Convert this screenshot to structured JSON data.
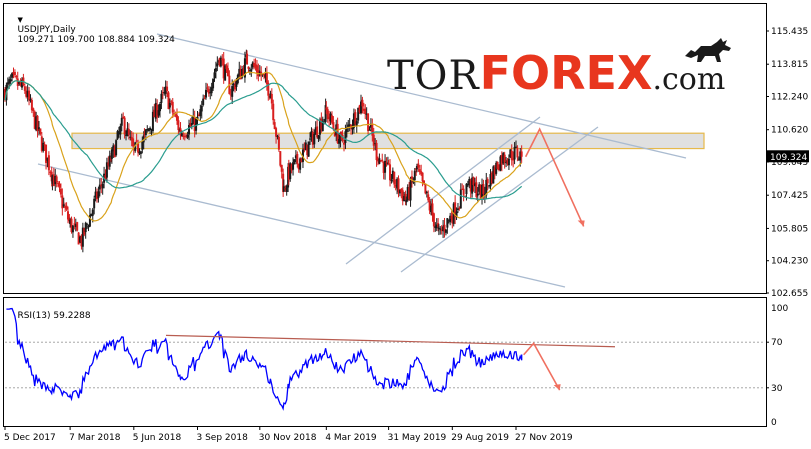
{
  "header": {
    "symbol": "USDJPY,Daily",
    "ohlc": "109.271 109.700 108.884 109.324"
  },
  "logo": {
    "part1": "TOR",
    "part2": "FOREX",
    "part3": ".com",
    "colors": {
      "part1": "#1a1a1a",
      "part2": "#e8361e",
      "part3": "#1a1a1a"
    }
  },
  "price_axis": {
    "labels": [
      "115.435",
      "113.815",
      "112.240",
      "110.620",
      "109.045",
      "107.425",
      "105.805",
      "104.230",
      "102.655"
    ],
    "current_price": "109.324",
    "current_color": "#000000"
  },
  "rsi": {
    "label": "RSI(13) 59.2288",
    "levels": [
      "100",
      "70",
      "30",
      "0"
    ],
    "color": "#0000ff"
  },
  "time_axis": {
    "labels": [
      "5 Dec 2017",
      "7 Mar 2018",
      "5 Jun 2018",
      "3 Sep 2018",
      "30 Nov 2018",
      "4 Mar 2019",
      "31 May 2019",
      "29 Aug 2019",
      "27 Nov 2019"
    ]
  },
  "colors": {
    "bull_candle": "#1a1a1a",
    "bear_candle": "#d81e1e",
    "ma_fast": "#d9a21b",
    "ma_slow": "#2a9d8f",
    "channel": "#aabbd0",
    "zone_fill": "#d6d6d6",
    "zone_border": "#e6b94a",
    "arrow": "#f07060",
    "rsi_trend": "#b85c50"
  },
  "chart_data": [
    {
      "type": "candlestick",
      "title": "USDJPY,Daily",
      "ylim": [
        102.655,
        115.435
      ],
      "x_labels": [
        "5 Dec 2017",
        "7 Mar 2018",
        "5 Jun 2018",
        "3 Sep 2018",
        "30 Nov 2018",
        "4 Mar 2019",
        "31 May 2019",
        "29 Aug 2019",
        "27 Nov 2019"
      ],
      "close_path": [
        [
          "5 Dec 2017",
          112.5
        ],
        [
          "15 Dec 2017",
          113.0
        ],
        [
          "2 Jan 2018",
          112.6
        ],
        [
          "20 Jan 2018",
          110.6
        ],
        [
          "10 Feb 2018",
          108.4
        ],
        [
          "7 Mar 2018",
          106.0
        ],
        [
          "23 Mar 2018",
          105.2
        ],
        [
          "10 Apr 2018",
          107.0
        ],
        [
          "5 May 2018",
          109.3
        ],
        [
          "21 May 2018",
          111.0
        ],
        [
          "5 Jun 2018",
          109.5
        ],
        [
          "20 Jun 2018",
          110.2
        ],
        [
          "10 Jul 2018",
          111.8
        ],
        [
          "20 Jul 2018",
          112.4
        ],
        [
          "10 Aug 2018",
          110.5
        ],
        [
          "3 Sep 2018",
          111.0
        ],
        [
          "4 Oct 2018",
          114.2
        ],
        [
          "20 Oct 2018",
          112.5
        ],
        [
          "12 Nov 2018",
          114.0
        ],
        [
          "30 Nov 2018",
          113.4
        ],
        [
          "15 Dec 2018",
          112.5
        ],
        [
          "3 Jan 2019",
          107.7
        ],
        [
          "10 Jan 2019",
          108.5
        ],
        [
          "1 Feb 2019",
          109.5
        ],
        [
          "4 Mar 2019",
          111.5
        ],
        [
          "25 Mar 2019",
          110.0
        ],
        [
          "24 Apr 2019",
          112.0
        ],
        [
          "14 May 2019",
          109.5
        ],
        [
          "31 May 2019",
          108.5
        ],
        [
          "25 Jun 2019",
          107.2
        ],
        [
          "10 Jul 2019",
          108.7
        ],
        [
          "10 Aug 2019",
          105.5
        ],
        [
          "29 Aug 2019",
          106.5
        ],
        [
          "20 Sep 2019",
          108.0
        ],
        [
          "10 Oct 2019",
          107.5
        ],
        [
          "5 Nov 2019",
          109.2
        ],
        [
          "27 Nov 2019",
          109.5
        ],
        [
          "5 Dec 2019",
          109.3
        ]
      ],
      "current_price": 109.324
    },
    {
      "type": "line",
      "title": "RSI(13) 59.2288",
      "ylim": [
        0,
        100
      ],
      "levels": [
        30,
        70
      ],
      "current_value": 59.2288
    }
  ]
}
